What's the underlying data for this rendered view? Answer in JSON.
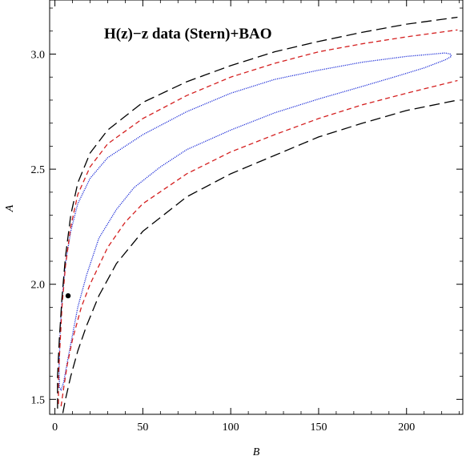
{
  "chart_data": {
    "type": "line",
    "title": "H(z)−z data (Stern)+BAO",
    "xlabel": "B",
    "ylabel": "A",
    "xlim": [
      -3,
      232
    ],
    "ylim": [
      1.435,
      3.235
    ],
    "xticks": [
      0,
      50,
      100,
      150,
      200
    ],
    "yticks": [
      1.5,
      2.0,
      2.5,
      3.0
    ],
    "x_tick_labels": [
      "0",
      "50",
      "100",
      "150",
      "200"
    ],
    "y_tick_labels": [
      "1.5",
      "2.0",
      "2.5",
      "3.0"
    ],
    "grid": false,
    "legend": "none",
    "best_fit_point": {
      "x": 7.5,
      "y": 1.95,
      "color": "#000000"
    },
    "series": [
      {
        "style": "dotted",
        "color": "#1f2fd8",
        "closed": true,
        "points": [
          [
            2.6,
            1.55
          ],
          [
            2.4,
            1.65
          ],
          [
            3.0,
            1.8
          ],
          [
            4.0,
            1.93
          ],
          [
            6.0,
            2.09
          ],
          [
            9.0,
            2.23
          ],
          [
            13.0,
            2.35
          ],
          [
            20.0,
            2.46
          ],
          [
            30.0,
            2.55
          ],
          [
            50.0,
            2.65
          ],
          [
            75.0,
            2.75
          ],
          [
            100.0,
            2.83
          ],
          [
            125.0,
            2.89
          ],
          [
            150.0,
            2.93
          ],
          [
            175.0,
            2.965
          ],
          [
            200.0,
            2.99
          ],
          [
            215.0,
            3.0
          ],
          [
            222.0,
            3.005
          ],
          [
            225.0,
            3.0
          ],
          [
            225.5,
            2.99
          ],
          [
            222.0,
            2.975
          ],
          [
            210.0,
            2.94
          ],
          [
            195.0,
            2.905
          ],
          [
            175.0,
            2.86
          ],
          [
            150.0,
            2.805
          ],
          [
            125.0,
            2.745
          ],
          [
            100.0,
            2.67
          ],
          [
            75.0,
            2.585
          ],
          [
            60.0,
            2.51
          ],
          [
            45.0,
            2.42
          ],
          [
            35.0,
            2.325
          ],
          [
            25.0,
            2.2
          ],
          [
            18.0,
            2.04
          ],
          [
            13.0,
            1.9
          ],
          [
            9.5,
            1.76
          ],
          [
            7.0,
            1.66
          ],
          [
            5.0,
            1.575
          ],
          [
            3.5,
            1.54
          ],
          [
            2.6,
            1.55
          ]
        ]
      },
      {
        "style": "short-dash",
        "color": "#d41f1f",
        "points": [
          [
            2.0,
            1.48
          ],
          [
            2.0,
            1.6
          ],
          [
            3.0,
            1.75
          ],
          [
            4.0,
            1.9
          ],
          [
            6.0,
            2.08
          ],
          [
            9.0,
            2.25
          ],
          [
            13.0,
            2.39
          ],
          [
            20.0,
            2.51
          ],
          [
            30.0,
            2.61
          ],
          [
            50.0,
            2.72
          ],
          [
            75.0,
            2.82
          ],
          [
            100.0,
            2.9
          ],
          [
            125.0,
            2.96
          ],
          [
            150.0,
            3.01
          ],
          [
            175.0,
            3.045
          ],
          [
            200.0,
            3.075
          ],
          [
            229.0,
            3.105
          ]
        ]
      },
      {
        "style": "short-dash",
        "color": "#d41f1f",
        "points": [
          [
            3.5,
            1.47
          ],
          [
            5.0,
            1.55
          ],
          [
            7.0,
            1.65
          ],
          [
            10.0,
            1.76
          ],
          [
            15.0,
            1.9
          ],
          [
            20.0,
            2.0
          ],
          [
            30.0,
            2.16
          ],
          [
            40.0,
            2.27
          ],
          [
            50.0,
            2.35
          ],
          [
            75.0,
            2.48
          ],
          [
            100.0,
            2.575
          ],
          [
            125.0,
            2.65
          ],
          [
            150.0,
            2.72
          ],
          [
            175.0,
            2.78
          ],
          [
            200.0,
            2.83
          ],
          [
            229.0,
            2.885
          ]
        ]
      },
      {
        "style": "long-dash",
        "color": "#000000",
        "points": [
          [
            1.5,
            1.46
          ],
          [
            1.5,
            1.6
          ],
          [
            2.5,
            1.76
          ],
          [
            4.0,
            1.94
          ],
          [
            6.0,
            2.12
          ],
          [
            9.0,
            2.3
          ],
          [
            13.0,
            2.44
          ],
          [
            20.0,
            2.57
          ],
          [
            30.0,
            2.67
          ],
          [
            50.0,
            2.79
          ],
          [
            75.0,
            2.88
          ],
          [
            100.0,
            2.95
          ],
          [
            125.0,
            3.01
          ],
          [
            150.0,
            3.055
          ],
          [
            175.0,
            3.095
          ],
          [
            200.0,
            3.13
          ],
          [
            229.0,
            3.16
          ]
        ]
      },
      {
        "style": "long-dash",
        "color": "#000000",
        "points": [
          [
            4.5,
            1.44
          ],
          [
            6.0,
            1.5
          ],
          [
            9.0,
            1.6
          ],
          [
            13.0,
            1.71
          ],
          [
            18.0,
            1.82
          ],
          [
            25.0,
            1.95
          ],
          [
            35.0,
            2.09
          ],
          [
            50.0,
            2.23
          ],
          [
            75.0,
            2.38
          ],
          [
            100.0,
            2.48
          ],
          [
            125.0,
            2.56
          ],
          [
            150.0,
            2.64
          ],
          [
            175.0,
            2.7
          ],
          [
            200.0,
            2.755
          ],
          [
            229.0,
            2.8
          ]
        ]
      }
    ]
  }
}
